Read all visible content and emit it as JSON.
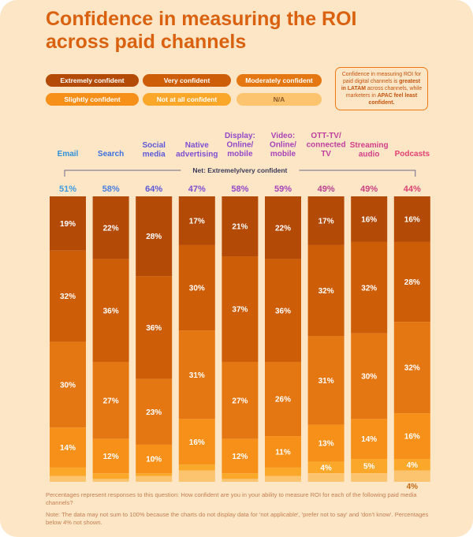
{
  "title": "Confidence in measuring the ROI across paid channels",
  "legend": [
    {
      "label": "Extremely confident",
      "color": "#b34a06",
      "text_color": "#ffffff"
    },
    {
      "label": "Very confident",
      "color": "#cd5d07",
      "text_color": "#ffffff"
    },
    {
      "label": "Moderately confident",
      "color": "#e57712",
      "text_color": "#ffffff"
    },
    {
      "label": "Slightly confident",
      "color": "#f69019",
      "text_color": "#ffffff"
    },
    {
      "label": "Not at all confident",
      "color": "#fba72a",
      "text_color": "#ffffff"
    },
    {
      "label": "N/A",
      "color": "#fdc470",
      "text_color": "#8a5a2a"
    }
  ],
  "callout": {
    "part1": "Confidence in measuring ROI for paid digital channels is ",
    "bold1": "greatest in LATAM",
    "part2": " across channels, while marketers in ",
    "bold2": "APAC feel least confident."
  },
  "net_label": "Net: Extremely/very confident",
  "chart_data": {
    "type": "bar",
    "stacked": true,
    "orientation": "vertical",
    "categories": [
      "Email",
      "Search",
      "Social media",
      "Native advertising",
      "Display: Online/ mobile",
      "Video: Online/ mobile",
      "OTT-TV/ connected TV",
      "Streaming audio",
      "Podcasts"
    ],
    "category_colors": [
      "#2f8fd8",
      "#3d6fe0",
      "#5b59d8",
      "#7b4fd2",
      "#9447c9",
      "#a943b9",
      "#c0409f",
      "#d33f89",
      "#e33f72"
    ],
    "net_values": [
      51,
      58,
      64,
      47,
      58,
      59,
      49,
      49,
      44
    ],
    "net_colors": [
      "#3e9be0",
      "#4a7fe0",
      "#5b59d8",
      "#7b4fd2",
      "#9447c9",
      "#a943b9",
      "#b8418f",
      "#c9417f",
      "#d94270"
    ],
    "series": [
      {
        "name": "Extremely confident",
        "values": [
          19,
          22,
          28,
          17,
          21,
          22,
          17,
          16,
          16
        ]
      },
      {
        "name": "Very confident",
        "values": [
          32,
          36,
          36,
          30,
          37,
          36,
          32,
          32,
          28
        ]
      },
      {
        "name": "Moderately confident",
        "values": [
          30,
          27,
          23,
          31,
          27,
          26,
          31,
          30,
          32
        ]
      },
      {
        "name": "Slightly confident",
        "values": [
          14,
          12,
          10,
          16,
          12,
          11,
          13,
          14,
          16
        ]
      },
      {
        "name": "Not at all confident",
        "values": [
          3,
          2,
          1,
          2,
          2,
          3,
          4,
          5,
          4
        ]
      },
      {
        "name": "N/A",
        "values": [
          2,
          1,
          2,
          4,
          1,
          2,
          3,
          3,
          4
        ]
      }
    ],
    "data_labels": [
      [
        "19%",
        "22%",
        "28%",
        "17%",
        "21%",
        "22%",
        "17%",
        "16%",
        "16%"
      ],
      [
        "32%",
        "36%",
        "36%",
        "30%",
        "37%",
        "36%",
        "32%",
        "32%",
        "28%"
      ],
      [
        "30%",
        "27%",
        "23%",
        "31%",
        "27%",
        "26%",
        "31%",
        "30%",
        "32%"
      ],
      [
        "14%",
        "12%",
        "10%",
        "16%",
        "12%",
        "11%",
        "13%",
        "14%",
        "16%"
      ],
      [
        "",
        "",
        "",
        "",
        "",
        "",
        "4%",
        "5%",
        "4%"
      ],
      [
        "",
        "",
        "",
        "",
        "",
        "",
        "",
        "",
        "4%"
      ]
    ],
    "ylim": [
      0,
      100
    ]
  },
  "notes": {
    "line1": "Percentages represent responses to this question: How confident are you in your ability to measure ROI for each of the following paid media channels?",
    "line2": "Note: The data may not sum to 100% because the charts do not display data for 'not applicable', 'prefer not to say' and 'don't know'. Percentages below 4% not shown."
  }
}
